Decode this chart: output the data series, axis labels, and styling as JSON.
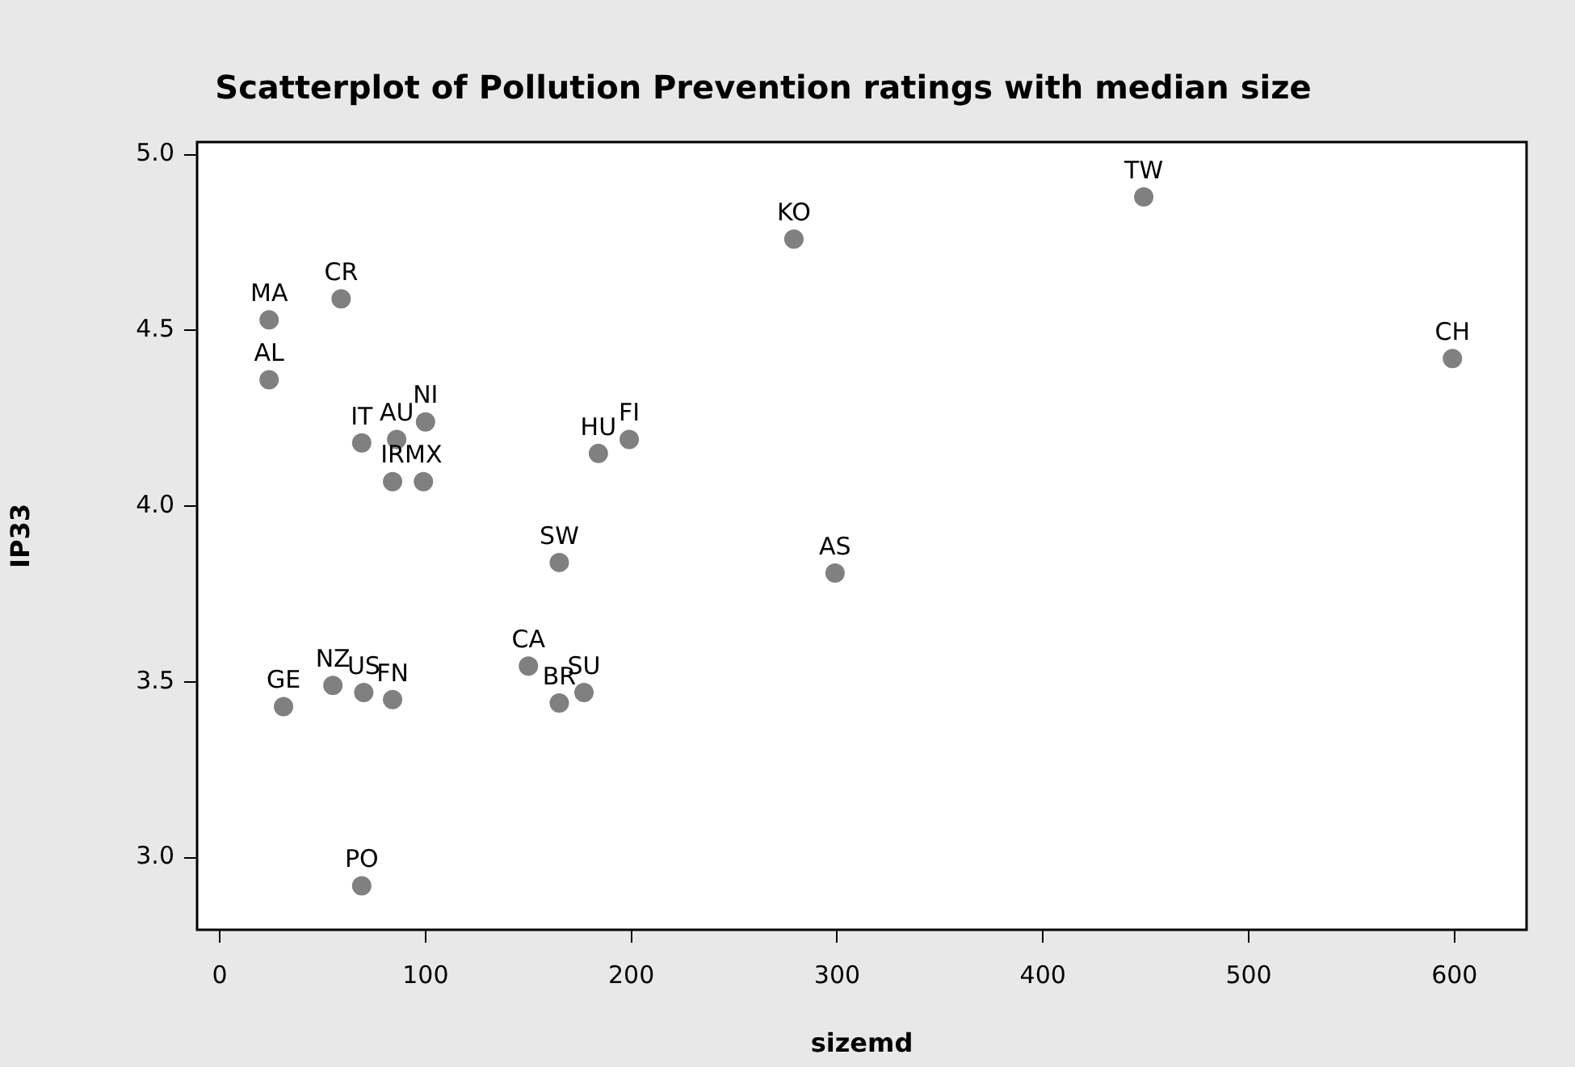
{
  "chart_data": {
    "type": "scatter",
    "title": "Scatterplot of Pollution Prevention ratings with median size",
    "xlabel": "sizemd",
    "ylabel": "IP33",
    "xlim": [
      -11,
      635
    ],
    "ylim": [
      2.795,
      5.036
    ],
    "xticks": [
      0,
      100,
      200,
      300,
      400,
      500,
      600
    ],
    "yticks": [
      {
        "value": 3,
        "label": "3.0"
      },
      3.5,
      {
        "value": 4,
        "label": "4.0"
      },
      4.5,
      {
        "value": 5,
        "label": "5.0"
      }
    ],
    "grid": false,
    "legend": false,
    "marker": "circle",
    "series": [
      {
        "color": "#808080",
        "x": [
          24,
          59,
          24,
          69,
          86,
          100,
          84,
          99,
          184,
          199,
          165,
          31,
          55,
          70,
          84,
          69,
          150,
          165,
          177,
          279,
          449,
          599,
          299
        ],
        "values": [
          4.53,
          4.59,
          4.36,
          4.18,
          4.19,
          4.24,
          4.07,
          4.07,
          4.15,
          4.19,
          3.84,
          3.43,
          3.49,
          3.47,
          3.45,
          2.92,
          3.545,
          3.44,
          3.47,
          4.76,
          4.88,
          4.42,
          3.81
        ]
      }
    ],
    "annotations": [
      {
        "text": "MA",
        "x": 24,
        "y": 4.53
      },
      {
        "text": "CR",
        "x": 59,
        "y": 4.59
      },
      {
        "text": "AL",
        "x": 24,
        "y": 4.36
      },
      {
        "text": "IT",
        "x": 69,
        "y": 4.18
      },
      {
        "text": "AU",
        "x": 86,
        "y": 4.19
      },
      {
        "text": "NI",
        "x": 100,
        "y": 4.24
      },
      {
        "text": "IR",
        "x": 84,
        "y": 4.07
      },
      {
        "text": "MX",
        "x": 99,
        "y": 4.07
      },
      {
        "text": "HU",
        "x": 184,
        "y": 4.15
      },
      {
        "text": "FI",
        "x": 199,
        "y": 4.19
      },
      {
        "text": "SW",
        "x": 165,
        "y": 3.84
      },
      {
        "text": "GE",
        "x": 31,
        "y": 3.43
      },
      {
        "text": "NZ",
        "x": 55,
        "y": 3.49
      },
      {
        "text": "US",
        "x": 70,
        "y": 3.47
      },
      {
        "text": "FN",
        "x": 84,
        "y": 3.45
      },
      {
        "text": "PO",
        "x": 69,
        "y": 2.92
      },
      {
        "text": "CA",
        "x": 150,
        "y": 3.545
      },
      {
        "text": "BR",
        "x": 165,
        "y": 3.44
      },
      {
        "text": "SU",
        "x": 177,
        "y": 3.47
      },
      {
        "text": "KO",
        "x": 279,
        "y": 4.76
      },
      {
        "text": "TW",
        "x": 449,
        "y": 4.88
      },
      {
        "text": "CH",
        "x": 599,
        "y": 4.42
      },
      {
        "text": "AS",
        "x": 299,
        "y": 3.81
      }
    ]
  }
}
